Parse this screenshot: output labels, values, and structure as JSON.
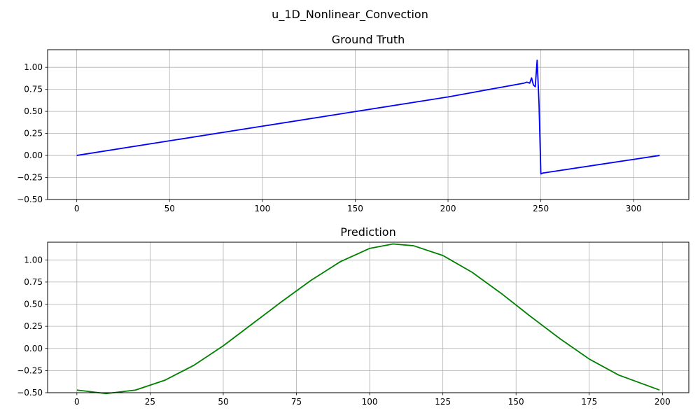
{
  "figure": {
    "suptitle": "u_1D_Nonlinear_Convection"
  },
  "chart_data": [
    {
      "type": "line",
      "title": "Ground Truth",
      "xlabel": "",
      "ylabel": "",
      "xlim": [
        -15.7,
        329.7
      ],
      "ylim": [
        -0.5,
        1.2
      ],
      "xticks": [
        0,
        50,
        100,
        150,
        200,
        250,
        300
      ],
      "yticks": [
        -0.5,
        -0.25,
        0.0,
        0.25,
        0.5,
        0.75,
        1.0
      ],
      "ytick_labels": [
        "−0.50",
        "−0.25",
        "0.00",
        "0.25",
        "0.50",
        "0.75",
        "1.00"
      ],
      "grid": true,
      "series": [
        {
          "color": "#0000ff",
          "x": [
            0,
            50,
            100,
            150,
            200,
            241,
            242.5,
            244,
            245,
            246,
            247,
            248,
            249,
            250,
            251,
            314
          ],
          "y": [
            0,
            0.166,
            0.332,
            0.498,
            0.664,
            0.821,
            0.832,
            0.82,
            0.88,
            0.8,
            0.78,
            1.08,
            0.6,
            -0.21,
            -0.2,
            0
          ]
        }
      ]
    },
    {
      "type": "line",
      "title": "Prediction",
      "xlabel": "",
      "ylabel": "",
      "xlim": [
        -10,
        209
      ],
      "ylim": [
        -0.5,
        1.2
      ],
      "xticks": [
        0,
        25,
        50,
        75,
        100,
        125,
        150,
        175,
        200
      ],
      "yticks": [
        -0.5,
        -0.25,
        0.0,
        0.25,
        0.5,
        0.75,
        1.0
      ],
      "ytick_labels": [
        "−0.50",
        "−0.25",
        "0.00",
        "0.25",
        "0.50",
        "0.75",
        "1.00"
      ],
      "grid": true,
      "series": [
        {
          "color": "#008000",
          "x": [
            0,
            10,
            20,
            30,
            40,
            50,
            60,
            70,
            80,
            90,
            100,
            108,
            115,
            125,
            135,
            145,
            155,
            165,
            175,
            185,
            199
          ],
          "y": [
            -0.47,
            -0.51,
            -0.47,
            -0.36,
            -0.19,
            0.03,
            0.28,
            0.53,
            0.77,
            0.98,
            1.13,
            1.18,
            1.16,
            1.05,
            0.86,
            0.62,
            0.36,
            0.11,
            -0.12,
            -0.3,
            -0.47
          ]
        }
      ]
    }
  ]
}
